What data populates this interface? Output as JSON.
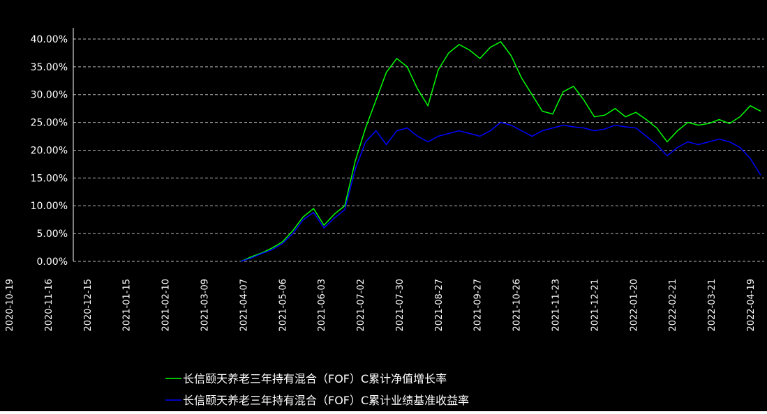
{
  "chart_data": {
    "type": "line",
    "title": "",
    "xlabel": "",
    "ylabel": "",
    "y_ticks": [
      "0.00%",
      "5.00%",
      "10.00%",
      "15.00%",
      "20.00%",
      "25.00%",
      "30.00%",
      "35.00%",
      "40.00%"
    ],
    "ylim": [
      0,
      42
    ],
    "x_ticks": [
      "2020-10-19",
      "2020-11-16",
      "2020-12-15",
      "2021-01-15",
      "2021-02-10",
      "2021-03-09",
      "2021-04-07",
      "2021-05-06",
      "2021-06-03",
      "2021-07-02",
      "2021-07-30",
      "2021-08-27",
      "2021-09-27",
      "2021-10-26",
      "2021-11-23",
      "2021-12-21",
      "2022-01-20",
      "2022-02-21",
      "2022-03-21",
      "2022-04-19"
    ],
    "series": [
      {
        "name": "长信颐天养老三年持有混合（FOF）C累计净值增长率",
        "color": "#00ff00",
        "values": [
          0.0,
          0.8,
          1.5,
          2.4,
          3.5,
          5.5,
          8.0,
          9.5,
          6.5,
          8.5,
          10.0,
          18.0,
          24.0,
          29.0,
          34.0,
          36.5,
          35.0,
          31.0,
          28.0,
          34.5,
          37.5,
          39.0,
          38.0,
          36.5,
          38.5,
          39.5,
          37.0,
          33.0,
          30.0,
          27.0,
          26.5,
          30.5,
          31.5,
          29.0,
          26.0,
          26.3,
          27.5,
          26.0,
          26.8,
          25.5,
          24.0,
          21.5,
          23.5,
          25.0,
          24.5,
          24.8,
          25.5,
          24.8,
          26.0,
          28.0,
          27.0
        ]
      },
      {
        "name": "长信颐天养老三年持有混合（FOF）C累计业绩基准收益率",
        "color": "#0000ff",
        "values": [
          0.0,
          0.6,
          1.4,
          2.1,
          3.2,
          5.0,
          7.5,
          8.8,
          6.0,
          7.8,
          9.3,
          16.5,
          21.5,
          23.5,
          21.0,
          23.5,
          24.0,
          22.5,
          21.5,
          22.5,
          23.0,
          23.5,
          23.0,
          22.5,
          23.5,
          25.0,
          24.5,
          23.5,
          22.5,
          23.5,
          24.0,
          24.5,
          24.2,
          24.0,
          23.5,
          23.8,
          24.5,
          24.2,
          24.0,
          22.5,
          21.0,
          19.0,
          20.5,
          21.5,
          21.0,
          21.5,
          22.0,
          21.5,
          20.5,
          18.5,
          15.5
        ]
      }
    ],
    "grid": true,
    "legend_position": "bottom-center"
  }
}
